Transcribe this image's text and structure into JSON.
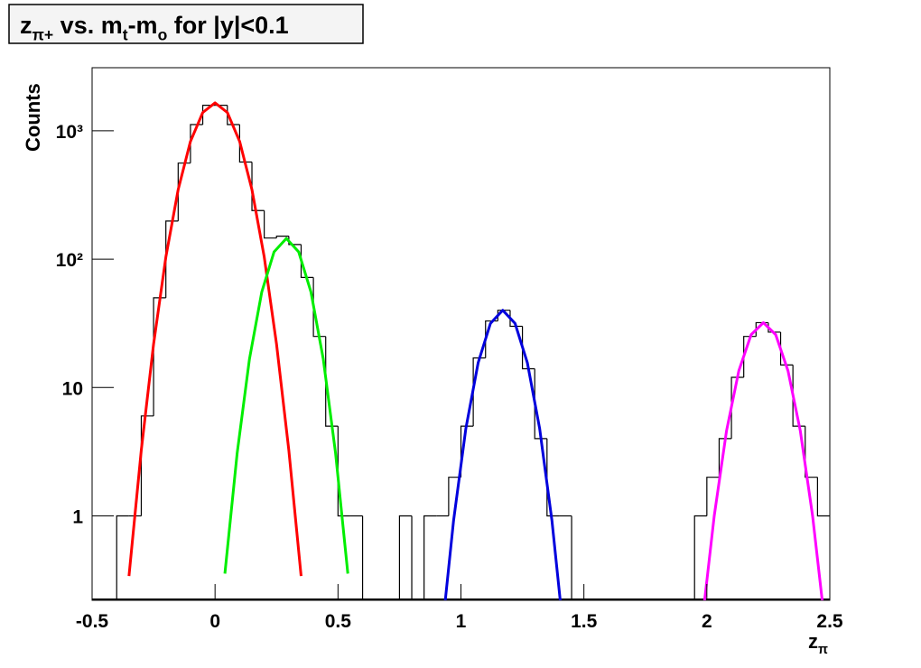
{
  "chart_data": {
    "type": "histogram",
    "title_parts": [
      {
        "text": "z"
      },
      {
        "sub": "π+"
      },
      {
        "text": " vs. m"
      },
      {
        "sub": "t"
      },
      {
        "text": "-m"
      },
      {
        "sub": "o"
      },
      {
        "text": " for |y|<0.1"
      }
    ],
    "x_label_parts": [
      {
        "text": "z"
      },
      {
        "sub": "π"
      }
    ],
    "y_label": "Counts",
    "log_y": true,
    "xlim": [
      -0.5,
      2.5
    ],
    "ylim": [
      0.22,
      3100
    ],
    "xticks": [
      -0.5,
      0,
      0.5,
      1,
      1.5,
      2,
      2.5
    ],
    "yticks": [
      1,
      10,
      {
        "value": 100,
        "label": "10²"
      },
      {
        "value": 1000,
        "label": "10³"
      }
    ],
    "color": "#000000",
    "bins": [
      -0.5,
      -0.45,
      -0.4,
      -0.35,
      -0.3,
      -0.25,
      -0.2,
      -0.15,
      -0.1,
      -0.05,
      0,
      0.05,
      0.1,
      0.15,
      0.2,
      0.25,
      0.3,
      0.35,
      0.4,
      0.45,
      0.5,
      0.55,
      0.6,
      0.65,
      0.7,
      0.75,
      0.8,
      0.85,
      0.9,
      0.95,
      1,
      1.05,
      1.1,
      1.15,
      1.2,
      1.25,
      1.3,
      1.35,
      1.4,
      1.45,
      1.5,
      1.55,
      1.6,
      1.65,
      1.7,
      1.75,
      1.8,
      1.85,
      1.9,
      1.95,
      2,
      2.05,
      2.1,
      2.15,
      2.2,
      2.25,
      2.3,
      2.35,
      2.4,
      2.45,
      2.5
    ],
    "values": [
      0,
      0,
      1,
      1,
      6,
      50,
      198,
      560,
      1118,
      1580,
      1580,
      1118,
      571,
      239,
      146,
      151,
      130,
      72,
      25,
      5,
      1,
      1,
      0,
      0,
      0,
      1,
      0,
      1,
      1,
      2,
      5,
      17,
      33,
      40,
      30,
      14,
      4,
      1,
      1,
      0,
      0,
      0,
      0,
      0,
      0,
      0,
      0,
      0,
      0,
      1,
      2,
      4,
      12,
      25,
      32,
      27,
      15,
      5,
      2,
      1
    ],
    "fits": [
      {
        "color": "#ff0000",
        "x": [
          -0.35,
          -0.3,
          -0.25,
          -0.2,
          -0.15,
          -0.1,
          -0.05,
          0,
          0.05,
          0.1,
          0.15,
          0.2,
          0.25,
          0.3,
          0.35
        ],
        "values": [
          0.34,
          3.25,
          21.8,
          104,
          348,
          826,
          1388,
          1650,
          1388,
          826,
          348,
          104,
          21.8,
          3.25,
          0.34
        ]
      },
      {
        "color": "#00ee00",
        "x": [
          0.04,
          0.09,
          0.14,
          0.19,
          0.24,
          0.29,
          0.34,
          0.39,
          0.44,
          0.49,
          0.54
        ],
        "values": [
          0.355,
          3.09,
          16.7,
          55.5,
          114,
          145,
          114,
          55.5,
          16.7,
          3.09,
          0.355
        ]
      },
      {
        "color": "#0000dd",
        "x": [
          0.92,
          0.97,
          1.02,
          1.07,
          1.12,
          1.17,
          1.22,
          1.27,
          1.32,
          1.37,
          1.42
        ],
        "values": [
          0.11,
          0.92,
          4.8,
          15.6,
          31.6,
          40,
          31.6,
          15.6,
          4.8,
          0.92,
          0.11
        ]
      },
      {
        "color": "#ff00ff",
        "x": [
          1.98,
          2.03,
          2.08,
          2.13,
          2.18,
          2.23,
          2.28,
          2.33,
          2.38,
          2.43,
          2.48
        ],
        "values": [
          0.144,
          1.0,
          4.6,
          13.5,
          25.8,
          32,
          25.8,
          13.5,
          4.6,
          1.0,
          0.144
        ]
      }
    ]
  }
}
